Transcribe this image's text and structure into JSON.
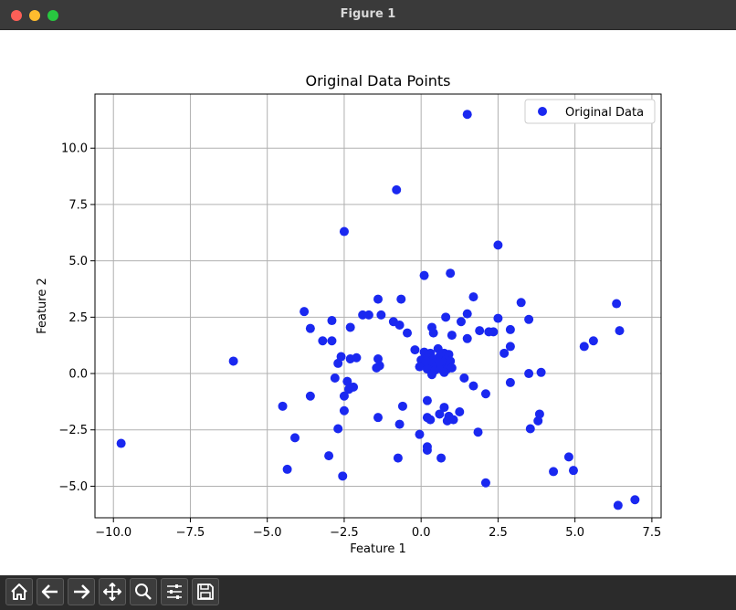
{
  "window": {
    "title": "Figure 1"
  },
  "toolbar": {
    "buttons": [
      {
        "name": "home-button",
        "icon": "home-icon"
      },
      {
        "name": "back-button",
        "icon": "arrow-left-icon"
      },
      {
        "name": "forward-button",
        "icon": "arrow-right-icon"
      },
      {
        "name": "pan-button",
        "icon": "move-icon"
      },
      {
        "name": "zoom-button",
        "icon": "search-icon"
      },
      {
        "name": "configure-subplots-button",
        "icon": "sliders-icon"
      },
      {
        "name": "save-button",
        "icon": "save-icon"
      }
    ]
  },
  "chart_data": {
    "type": "scatter",
    "title": "Original Data Points",
    "xlabel": "Feature 1",
    "ylabel": "Feature 2",
    "xlim": [
      -10.6,
      7.8
    ],
    "ylim": [
      -6.4,
      12.4
    ],
    "xticks": [
      -10.0,
      -7.5,
      -5.0,
      -2.5,
      0.0,
      2.5,
      5.0,
      7.5
    ],
    "xtick_labels": [
      "−10.0",
      "−7.5",
      "−5.0",
      "−2.5",
      "0.0",
      "2.5",
      "5.0",
      "7.5"
    ],
    "yticks": [
      -5.0,
      -2.5,
      0.0,
      2.5,
      5.0,
      7.5,
      10.0
    ],
    "ytick_labels": [
      "−5.0",
      "−2.5",
      "0.0",
      "2.5",
      "5.0",
      "7.5",
      "10.0"
    ],
    "grid": true,
    "legend": {
      "position": "top-right",
      "entries": [
        "Original Data"
      ]
    },
    "colors": {
      "points": "#1a28f0",
      "grid": "#b0b0b0"
    },
    "series": [
      {
        "name": "Original Data",
        "points": [
          [
            1.5,
            11.5
          ],
          [
            -0.8,
            8.15
          ],
          [
            -2.5,
            6.3
          ],
          [
            2.5,
            5.7
          ],
          [
            0.1,
            4.35
          ],
          [
            0.95,
            4.45
          ],
          [
            -1.4,
            3.3
          ],
          [
            -0.65,
            3.3
          ],
          [
            1.7,
            3.4
          ],
          [
            3.25,
            3.15
          ],
          [
            6.35,
            3.1
          ],
          [
            -3.8,
            2.75
          ],
          [
            -2.9,
            2.35
          ],
          [
            -2.3,
            2.05
          ],
          [
            -1.9,
            2.6
          ],
          [
            -1.7,
            2.6
          ],
          [
            -1.3,
            2.6
          ],
          [
            -0.9,
            2.3
          ],
          [
            -0.7,
            2.15
          ],
          [
            -0.45,
            1.8
          ],
          [
            0.4,
            1.8
          ],
          [
            0.35,
            2.05
          ],
          [
            0.8,
            2.5
          ],
          [
            1.3,
            2.3
          ],
          [
            1.5,
            2.65
          ],
          [
            1.9,
            1.9
          ],
          [
            2.2,
            1.85
          ],
          [
            2.35,
            1.85
          ],
          [
            2.5,
            2.45
          ],
          [
            2.9,
            1.95
          ],
          [
            3.5,
            2.4
          ],
          [
            6.45,
            1.9
          ],
          [
            -3.6,
            2.0
          ],
          [
            -3.2,
            1.45
          ],
          [
            -2.9,
            1.45
          ],
          [
            1.0,
            1.7
          ],
          [
            1.5,
            1.55
          ],
          [
            2.7,
            0.9
          ],
          [
            2.9,
            1.2
          ],
          [
            5.3,
            1.2
          ],
          [
            5.6,
            1.45
          ],
          [
            -6.1,
            0.55
          ],
          [
            -2.6,
            0.75
          ],
          [
            -2.3,
            0.65
          ],
          [
            -2.1,
            0.7
          ],
          [
            -2.7,
            0.45
          ],
          [
            -1.4,
            0.65
          ],
          [
            -1.35,
            0.35
          ],
          [
            -1.45,
            0.25
          ],
          [
            -0.2,
            1.05
          ],
          [
            0.1,
            0.95
          ],
          [
            0.3,
            0.9
          ],
          [
            0.55,
            1.1
          ],
          [
            0.75,
            0.9
          ],
          [
            0.9,
            0.85
          ],
          [
            0.0,
            0.6
          ],
          [
            0.2,
            0.7
          ],
          [
            0.4,
            0.65
          ],
          [
            0.6,
            0.75
          ],
          [
            0.8,
            0.6
          ],
          [
            0.95,
            0.55
          ],
          [
            0.1,
            0.4
          ],
          [
            0.3,
            0.45
          ],
          [
            0.5,
            0.35
          ],
          [
            0.7,
            0.5
          ],
          [
            0.9,
            0.3
          ],
          [
            -0.05,
            0.3
          ],
          [
            0.2,
            0.2
          ],
          [
            0.45,
            0.15
          ],
          [
            0.65,
            0.2
          ],
          [
            0.85,
            0.2
          ],
          [
            1.0,
            0.25
          ],
          [
            0.35,
            -0.05
          ],
          [
            0.15,
            0.55
          ],
          [
            0.6,
            0.5
          ],
          [
            0.75,
            0.05
          ],
          [
            -2.8,
            -0.2
          ],
          [
            -2.4,
            -0.35
          ],
          [
            -2.2,
            -0.6
          ],
          [
            -2.35,
            -0.7
          ],
          [
            -2.5,
            -1.0
          ],
          [
            -3.6,
            -1.0
          ],
          [
            -4.5,
            -1.45
          ],
          [
            -2.5,
            -1.65
          ],
          [
            1.4,
            -0.2
          ],
          [
            1.7,
            -0.55
          ],
          [
            2.1,
            -0.9
          ],
          [
            2.9,
            -0.4
          ],
          [
            3.5,
            0.0
          ],
          [
            3.9,
            0.05
          ],
          [
            0.2,
            -1.2
          ],
          [
            0.75,
            -1.5
          ],
          [
            0.6,
            -1.8
          ],
          [
            0.9,
            -1.9
          ],
          [
            0.85,
            -2.1
          ],
          [
            1.05,
            -2.05
          ],
          [
            1.25,
            -1.7
          ],
          [
            0.2,
            -1.95
          ],
          [
            0.3,
            -2.05
          ],
          [
            -0.6,
            -1.45
          ],
          [
            -0.7,
            -2.25
          ],
          [
            -1.4,
            -1.95
          ],
          [
            3.85,
            -1.8
          ],
          [
            3.8,
            -2.1
          ],
          [
            3.55,
            -2.45
          ],
          [
            1.85,
            -2.6
          ],
          [
            -2.7,
            -2.45
          ],
          [
            -0.05,
            -2.7
          ],
          [
            -4.1,
            -2.85
          ],
          [
            -9.75,
            -3.1
          ],
          [
            0.2,
            -3.25
          ],
          [
            0.2,
            -3.4
          ],
          [
            -3.0,
            -3.65
          ],
          [
            -0.75,
            -3.75
          ],
          [
            0.65,
            -3.75
          ],
          [
            4.8,
            -3.7
          ],
          [
            4.3,
            -4.35
          ],
          [
            4.95,
            -4.3
          ],
          [
            -4.35,
            -4.25
          ],
          [
            -2.55,
            -4.55
          ],
          [
            2.1,
            -4.85
          ],
          [
            6.4,
            -5.85
          ],
          [
            6.95,
            -5.6
          ]
        ]
      }
    ]
  }
}
